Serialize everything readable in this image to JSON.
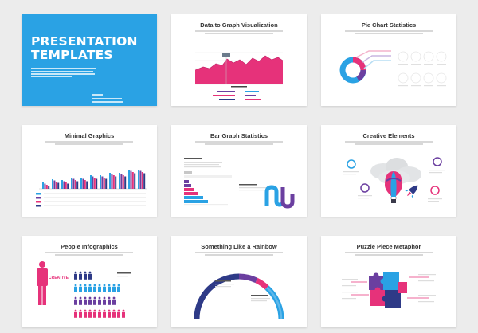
{
  "cover": {
    "title_line1": "PRESENTATION",
    "title_line2": "TEMPLATES",
    "bg_color": "#2aa2e4"
  },
  "slides": [
    {
      "title": "Data to Graph Visualization"
    },
    {
      "title": "Pie Chart Statistics"
    },
    {
      "title": "Minimal Graphics"
    },
    {
      "title": "Bar Graph Statistics"
    },
    {
      "title": "Creative Elements"
    },
    {
      "title": "People Infographics"
    },
    {
      "title": "Something Like a Rainbow"
    },
    {
      "title": "Puzzle Piece Metaphor"
    }
  ],
  "people": {
    "creative_label": "CREATIVE"
  },
  "colors": {
    "pink": "#e6327a",
    "blue": "#2aa2e4",
    "purple": "#6b3fa0",
    "navy": "#2e3a87",
    "background": "#ececec"
  },
  "icons": [
    "hot-air-balloon-icon",
    "rocket-icon",
    "cloud-icon",
    "person-icon",
    "puzzle-piece-icon"
  ]
}
